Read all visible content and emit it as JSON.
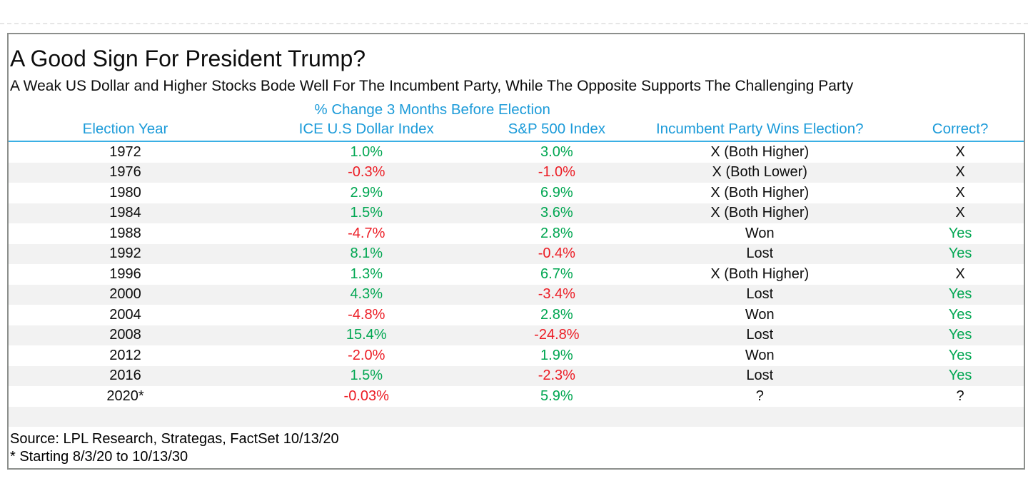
{
  "colors": {
    "accent_blue": "#1c9bd9",
    "positive_green": "#00a651",
    "negative_red": "#ec1c24",
    "stripe_gray": "#f2f2f2",
    "panel_border_gray": "#8c8f8c"
  },
  "header": {
    "title": "A Good Sign For President Trump?",
    "subtitle": "A Weak US Dollar and Higher Stocks Bode Well For The Incumbent Party, While The Opposite Supports The Challenging Party"
  },
  "table": {
    "group_header": "% Change 3 Months Before Election",
    "columns": {
      "year": "Election Year",
      "ice": "ICE U.S Dollar Index",
      "sp": "S&P 500 Index",
      "incumbent": "Incumbent Party Wins Election?",
      "correct": "Correct?"
    },
    "rows": [
      {
        "year": "1972",
        "ice": "1.0%",
        "ice_color": "pos",
        "sp": "3.0%",
        "sp_color": "pos",
        "incumbent": "X (Both Higher)",
        "correct": "X",
        "correct_color": "neutral"
      },
      {
        "year": "1976",
        "ice": "-0.3%",
        "ice_color": "neg",
        "sp": "-1.0%",
        "sp_color": "neg",
        "incumbent": "X (Both Lower)",
        "correct": "X",
        "correct_color": "neutral"
      },
      {
        "year": "1980",
        "ice": "2.9%",
        "ice_color": "pos",
        "sp": "6.9%",
        "sp_color": "pos",
        "incumbent": "X (Both Higher)",
        "correct": "X",
        "correct_color": "neutral"
      },
      {
        "year": "1984",
        "ice": "1.5%",
        "ice_color": "pos",
        "sp": "3.6%",
        "sp_color": "pos",
        "incumbent": "X (Both Higher)",
        "correct": "X",
        "correct_color": "neutral"
      },
      {
        "year": "1988",
        "ice": "-4.7%",
        "ice_color": "neg",
        "sp": "2.8%",
        "sp_color": "pos",
        "incumbent": "Won",
        "correct": "Yes",
        "correct_color": "pos"
      },
      {
        "year": "1992",
        "ice": "8.1%",
        "ice_color": "pos",
        "sp": "-0.4%",
        "sp_color": "neg",
        "incumbent": "Lost",
        "correct": "Yes",
        "correct_color": "pos"
      },
      {
        "year": "1996",
        "ice": "1.3%",
        "ice_color": "pos",
        "sp": "6.7%",
        "sp_color": "pos",
        "incumbent": "X (Both Higher)",
        "correct": "X",
        "correct_color": "neutral"
      },
      {
        "year": "2000",
        "ice": "4.3%",
        "ice_color": "pos",
        "sp": "-3.4%",
        "sp_color": "neg",
        "incumbent": "Lost",
        "correct": "Yes",
        "correct_color": "pos"
      },
      {
        "year": "2004",
        "ice": "-4.8%",
        "ice_color": "neg",
        "sp": "2.8%",
        "sp_color": "pos",
        "incumbent": "Won",
        "correct": "Yes",
        "correct_color": "pos"
      },
      {
        "year": "2008",
        "ice": "15.4%",
        "ice_color": "pos",
        "sp": "-24.8%",
        "sp_color": "neg",
        "incumbent": "Lost",
        "correct": "Yes",
        "correct_color": "pos"
      },
      {
        "year": "2012",
        "ice": "-2.0%",
        "ice_color": "neg",
        "sp": "1.9%",
        "sp_color": "pos",
        "incumbent": "Won",
        "correct": "Yes",
        "correct_color": "pos"
      },
      {
        "year": "2016",
        "ice": "1.5%",
        "ice_color": "pos",
        "sp": "-2.3%",
        "sp_color": "neg",
        "incumbent": "Lost",
        "correct": "Yes",
        "correct_color": "pos"
      },
      {
        "year": "2020*",
        "ice": "-0.03%",
        "ice_color": "neg",
        "sp": "5.9%",
        "sp_color": "pos",
        "incumbent": "?",
        "correct": "?",
        "correct_color": "neutral"
      }
    ]
  },
  "footer": {
    "source": "Source: LPL Research, Strategas, FactSet 10/13/20",
    "footnote": "* Starting 8/3/20 to 10/13/30"
  },
  "chart_data": {
    "type": "table",
    "title": "A Good Sign For President Trump?",
    "subtitle": "A Weak US Dollar and Higher Stocks Bode Well For The Incumbent Party, While The Opposite Supports The Challenging Party",
    "group_header": "% Change 3 Months Before Election (applies to ICE U.S Dollar Index and S&P 500 Index columns)",
    "columns": [
      "Election Year",
      "ICE U.S Dollar Index",
      "S&P 500 Index",
      "Incumbent Party Wins Election?",
      "Correct?"
    ],
    "rows": [
      [
        "1972",
        "1.0%",
        "3.0%",
        "X (Both Higher)",
        "X"
      ],
      [
        "1976",
        "-0.3%",
        "-1.0%",
        "X (Both Lower)",
        "X"
      ],
      [
        "1980",
        "2.9%",
        "6.9%",
        "X (Both Higher)",
        "X"
      ],
      [
        "1984",
        "1.5%",
        "3.6%",
        "X (Both Higher)",
        "X"
      ],
      [
        "1988",
        "-4.7%",
        "2.8%",
        "Won",
        "Yes"
      ],
      [
        "1992",
        "8.1%",
        "-0.4%",
        "Lost",
        "Yes"
      ],
      [
        "1996",
        "1.3%",
        "6.7%",
        "X (Both Higher)",
        "X"
      ],
      [
        "2000",
        "4.3%",
        "-3.4%",
        "Lost",
        "Yes"
      ],
      [
        "2004",
        "-4.8%",
        "2.8%",
        "Won",
        "Yes"
      ],
      [
        "2008",
        "15.4%",
        "-24.8%",
        "Lost",
        "Yes"
      ],
      [
        "2012",
        "-2.0%",
        "1.9%",
        "Won",
        "Yes"
      ],
      [
        "2016",
        "1.5%",
        "-2.3%",
        "Lost",
        "Yes"
      ],
      [
        "2020*",
        "-0.03%",
        "5.9%",
        "?",
        "?"
      ]
    ],
    "value_color_rule": "positive % green, negative % red; Yes green; X and ? black",
    "source": "Source: LPL Research, Strategas, FactSet 10/13/20",
    "footnote": "* Starting 8/3/20 to 10/13/30"
  }
}
